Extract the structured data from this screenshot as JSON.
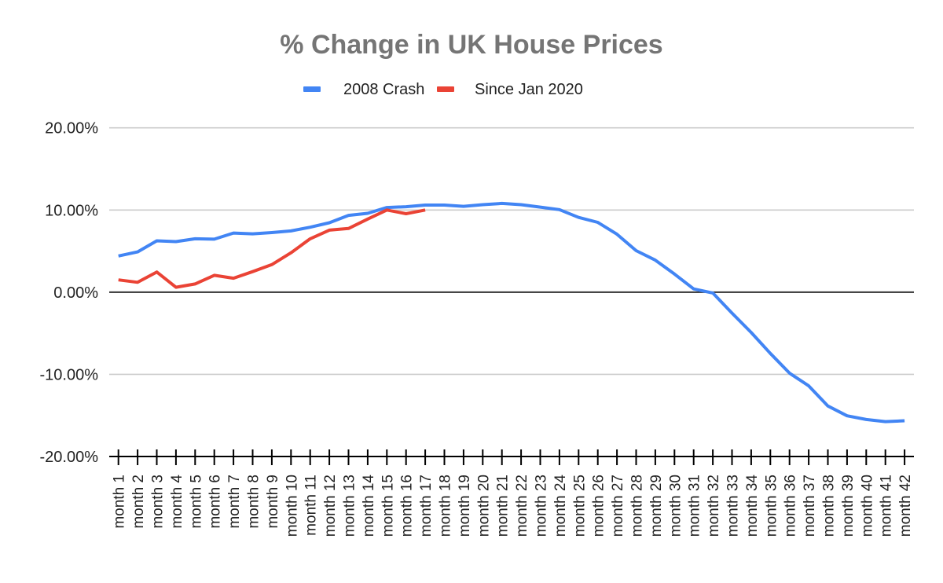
{
  "chart_data": {
    "type": "line",
    "title": "% Change in UK House Prices",
    "xlabel": "",
    "ylabel": "",
    "ylim": [
      -20,
      20
    ],
    "yticks": [
      20,
      10,
      0,
      -10,
      -20
    ],
    "ytick_labels": [
      "20.00%",
      "10.00%",
      "0.00%",
      "-10.00%",
      "-20.00%"
    ],
    "grid": true,
    "legend_position": "top-center",
    "categories": [
      "month 1",
      "month 2",
      "month 3",
      "month 4",
      "month 5",
      "month 6",
      "month 7",
      "month 8",
      "month 9",
      "month 10",
      "month 11",
      "month 12",
      "month 13",
      "month 14",
      "month 15",
      "month 16",
      "month 17",
      "month 18",
      "month 19",
      "month 20",
      "month 21",
      "month 22",
      "month 23",
      "month 24",
      "month 25",
      "month 26",
      "month 27",
      "month 28",
      "month 29",
      "month 30",
      "month 31",
      "month 32",
      "month 33",
      "month 34",
      "month 35",
      "month 36",
      "month 37",
      "month 38",
      "month 39",
      "month 40",
      "month 41",
      "month 42"
    ],
    "series": [
      {
        "name": "2008 Crash",
        "color": "#4285f4",
        "values": [
          4.4,
          4.9,
          6.25,
          6.15,
          6.5,
          6.45,
          7.2,
          7.1,
          7.25,
          7.45,
          7.9,
          8.45,
          9.35,
          9.6,
          10.3,
          10.4,
          10.6,
          10.6,
          10.45,
          10.65,
          10.8,
          10.65,
          10.35,
          10.05,
          9.1,
          8.5,
          7.05,
          5.05,
          3.9,
          2.2,
          0.4,
          -0.1,
          -2.55,
          -4.9,
          -7.45,
          -9.85,
          -11.4,
          -13.85,
          -15.05,
          -15.5,
          -15.75,
          -15.65
        ]
      },
      {
        "name": "Since Jan 2020",
        "color": "#ea4335",
        "values": [
          1.5,
          1.2,
          2.45,
          0.6,
          1.0,
          2.05,
          1.7,
          2.5,
          3.35,
          4.8,
          6.5,
          7.55,
          7.75,
          8.9,
          10.0,
          9.55,
          10.0
        ]
      }
    ]
  }
}
